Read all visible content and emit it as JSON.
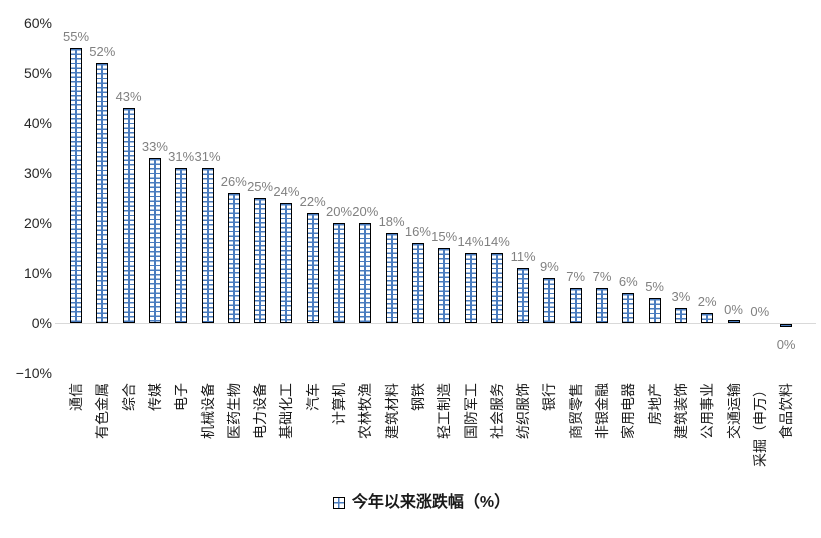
{
  "chart_data": {
    "type": "bar",
    "title": "",
    "xlabel": "",
    "ylabel": "",
    "legend": "今年以来涨跌幅（%）",
    "legend_position": "bottom-center",
    "grid": false,
    "ylim": [
      -10,
      60
    ],
    "ytick_values": [
      60,
      50,
      40,
      30,
      20,
      10,
      0,
      -10
    ],
    "ytick_labels": [
      "60%",
      "50%",
      "40%",
      "30%",
      "20%",
      "10%",
      "0%",
      "−10%"
    ],
    "categories": [
      "通信",
      "有色金属",
      "综合",
      "传媒",
      "电子",
      "机械设备",
      "医药生物",
      "电力设备",
      "基础化工",
      "汽车",
      "计算机",
      "农林牧渔",
      "建筑材料",
      "钢铁",
      "轻工制造",
      "国防军工",
      "社会服务",
      "纺织服饰",
      "银行",
      "商贸零售",
      "非银金融",
      "家用电器",
      "房地产",
      "建筑装饰",
      "公用事业",
      "交通运输",
      "采掘（申万）",
      "食品饮料"
    ],
    "values": [
      55,
      52,
      43,
      33,
      31,
      31,
      26,
      25,
      24,
      22,
      20,
      20,
      18,
      16,
      15,
      14,
      14,
      11,
      9,
      7,
      7,
      6,
      5,
      3,
      2,
      0,
      0,
      0
    ],
    "bar_render_values": [
      55,
      52,
      43,
      33,
      31,
      31,
      26,
      25,
      24,
      22,
      20,
      20,
      18,
      16,
      15,
      14,
      14,
      11,
      9,
      7,
      7,
      6,
      5,
      3,
      2,
      0.5,
      0.05,
      -0.6
    ],
    "data_labels": [
      "55%",
      "52%",
      "43%",
      "33%",
      "31%",
      "31%",
      "26%",
      "25%",
      "24%",
      "22%",
      "20%",
      "20%",
      "18%",
      "16%",
      "15%",
      "14%",
      "14%",
      "11%",
      "9%",
      "7%",
      "7%",
      "6%",
      "5%",
      "3%",
      "2%",
      "0%",
      "0%",
      "0%"
    ],
    "colors": {
      "bar_pattern_blue": "#4a7cbf",
      "bar_border": "#000000",
      "axis_line": "#d9d9d9",
      "data_label_gray": "#808080",
      "text": "#1a1a1a",
      "background": "#ffffff"
    }
  }
}
